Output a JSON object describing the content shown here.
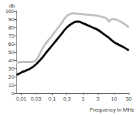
{
  "chart_data": {
    "type": "line",
    "y_label": "db",
    "x_label": "Frequency in MHz",
    "log": "x",
    "grid": false,
    "x": [
      0.007,
      0.01,
      0.02,
      0.03,
      0.05,
      0.07,
      0.1,
      0.2,
      0.3,
      0.5,
      0.7,
      1,
      2,
      3,
      5,
      6,
      7,
      8,
      10,
      20,
      30
    ],
    "series": [
      {
        "color": "#bdbdbd",
        "values": [
          37,
          38,
          38,
          40,
          55,
          63,
          70,
          85,
          94,
          97,
          96.5,
          96,
          95,
          94,
          92,
          90,
          87,
          90,
          90,
          85,
          80
        ]
      },
      {
        "color": "#000000",
        "values": [
          22,
          25,
          30,
          35,
          44,
          51,
          58,
          72,
          80,
          86,
          87,
          85,
          80,
          77,
          71,
          69,
          67,
          65,
          62,
          56,
          52
        ]
      }
    ],
    "xlim": [
      0.007,
      30
    ],
    "xticks": [
      0.01,
      0.03,
      0.1,
      0.3,
      1,
      3,
      10,
      30
    ],
    "ylim": [
      0,
      100
    ],
    "yticks": [
      0,
      10,
      20,
      30,
      40,
      50,
      60,
      70,
      80,
      90,
      100
    ]
  }
}
